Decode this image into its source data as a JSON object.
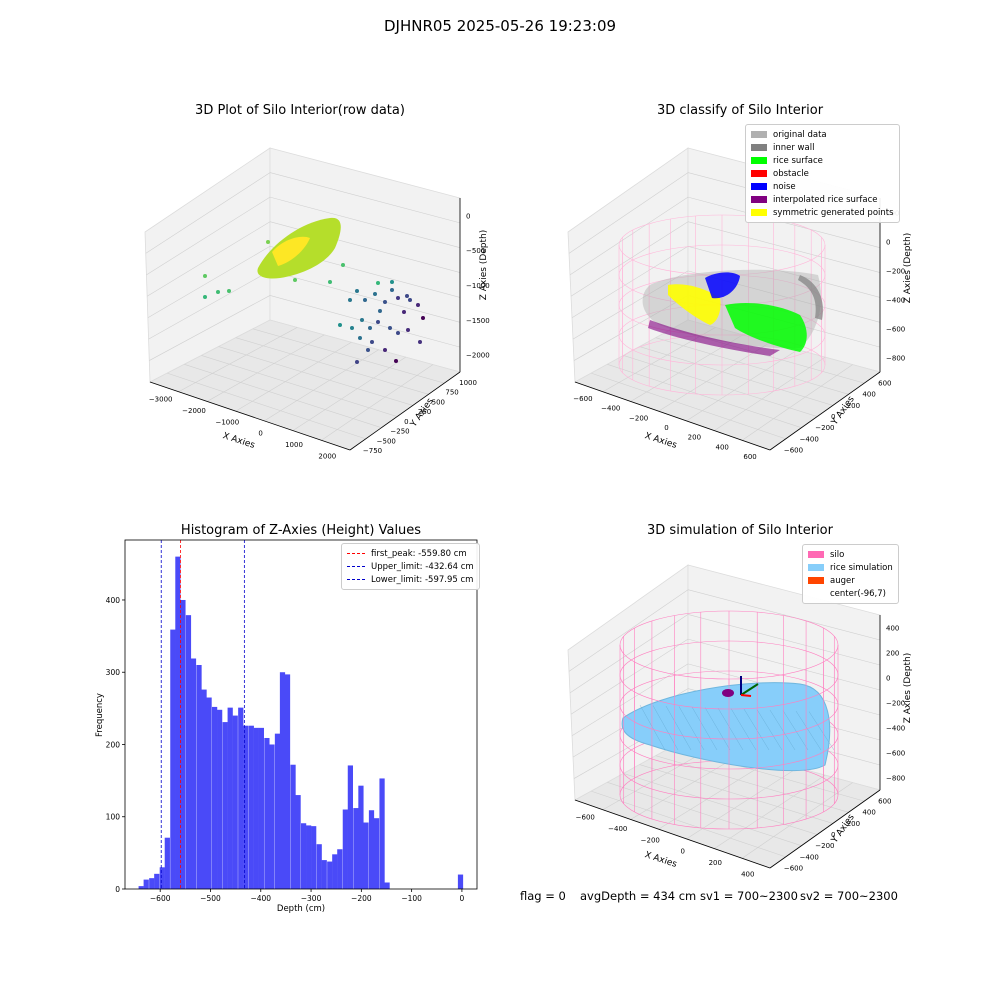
{
  "figure": {
    "title": "DJHNR05 2025-05-26 19:23:09"
  },
  "footer": {
    "flag": "flag = 0",
    "avg_depth": "avgDepth = 434 cm",
    "sv1": "sv1 = 700~2300",
    "sv2": "sv2 = 700~2300"
  },
  "colors": {
    "hist_bar": "#4a4af8",
    "first_peak_line": "#ff0000",
    "limit_line": "#0000cc",
    "silo": "#ff69b4",
    "rice_simulation": "#87cefa",
    "auger": "#ff4500",
    "original_data": "#b0b0b0",
    "inner_wall": "#808080",
    "rice_surface": "#00ff00",
    "obstacle": "#ff0000",
    "noise": "#0000ff",
    "interpolated_rice_surface": "#800080",
    "symmetric_generated_points": "#ffff00"
  },
  "chart_data": [
    {
      "type": "scatter",
      "kind": "3d",
      "title": "3D Plot of Silo Interior(row data)",
      "xlabel": "X Axies",
      "ylabel": "Y Axies",
      "zlabel": "Z Axies (Depth)",
      "x_ticks": [
        "−3000",
        "−2000",
        "−1000",
        "0",
        "1000",
        "2000"
      ],
      "y_ticks": [
        "−750",
        "−500",
        "−250",
        "0",
        "250",
        "500",
        "750",
        "1000"
      ],
      "z_ticks": [
        "0",
        "−500",
        "−1000",
        "−1500",
        "−2000"
      ],
      "colormap": "viridis",
      "grid": true
    },
    {
      "type": "scatter",
      "kind": "3d",
      "title": "3D classify of Silo Interior",
      "xlabel": "X Axies",
      "ylabel": "Y Axies",
      "zlabel": "Z Axies (Depth)",
      "x_ticks": [
        "−600",
        "−400",
        "−200",
        "0",
        "200",
        "400",
        "600"
      ],
      "y_ticks": [
        "−600",
        "−400",
        "−200",
        "0",
        "200",
        "400",
        "600"
      ],
      "z_ticks": [
        "200",
        "0",
        "−200",
        "−400",
        "−600",
        "−800"
      ],
      "legend": [
        "original data",
        "inner wall",
        "rice surface",
        "obstacle",
        "noise",
        "interpolated rice surface",
        "symmetric generated points"
      ],
      "legend_position": "upper right",
      "grid": true
    },
    {
      "type": "bar",
      "kind": "histogram",
      "title": "Histogram of Z-Axies (Height) Values",
      "xlabel": "Depth (cm)",
      "ylabel": "Frequency",
      "xlim": [
        -670,
        30
      ],
      "ylim": [
        0,
        483
      ],
      "x_ticks": [
        -600,
        -500,
        -400,
        -300,
        -200,
        -100,
        0
      ],
      "y_ticks": [
        0,
        100,
        200,
        300,
        400
      ],
      "bin_width": 10.4,
      "bins": [
        {
          "x0": -666,
          "value": 0
        },
        {
          "x0": -643,
          "value": 4
        },
        {
          "x0": -633,
          "value": 13
        },
        {
          "x0": -622,
          "value": 15
        },
        {
          "x0": -612,
          "value": 21
        },
        {
          "x0": -601,
          "value": 30
        },
        {
          "x0": -591,
          "value": 71
        },
        {
          "x0": -580,
          "value": 359
        },
        {
          "x0": -570,
          "value": 460
        },
        {
          "x0": -560,
          "value": 400
        },
        {
          "x0": -549,
          "value": 379
        },
        {
          "x0": -539,
          "value": 319
        },
        {
          "x0": -528,
          "value": 310
        },
        {
          "x0": -518,
          "value": 276
        },
        {
          "x0": -508,
          "value": 265
        },
        {
          "x0": -497,
          "value": 252
        },
        {
          "x0": -487,
          "value": 248
        },
        {
          "x0": -476,
          "value": 231
        },
        {
          "x0": -466,
          "value": 251
        },
        {
          "x0": -456,
          "value": 240
        },
        {
          "x0": -445,
          "value": 251
        },
        {
          "x0": -435,
          "value": 226
        },
        {
          "x0": -424,
          "value": 226
        },
        {
          "x0": -414,
          "value": 223
        },
        {
          "x0": -404,
          "value": 223
        },
        {
          "x0": -393,
          "value": 209
        },
        {
          "x0": -383,
          "value": 200
        },
        {
          "x0": -372,
          "value": 215
        },
        {
          "x0": -362,
          "value": 300
        },
        {
          "x0": -352,
          "value": 297
        },
        {
          "x0": -341,
          "value": 172
        },
        {
          "x0": -331,
          "value": 130
        },
        {
          "x0": -320,
          "value": 91
        },
        {
          "x0": -310,
          "value": 88
        },
        {
          "x0": -300,
          "value": 87
        },
        {
          "x0": -289,
          "value": 62
        },
        {
          "x0": -279,
          "value": 40
        },
        {
          "x0": -268,
          "value": 38
        },
        {
          "x0": -258,
          "value": 48
        },
        {
          "x0": -248,
          "value": 55
        },
        {
          "x0": -237,
          "value": 110
        },
        {
          "x0": -227,
          "value": 171
        },
        {
          "x0": -216,
          "value": 112
        },
        {
          "x0": -206,
          "value": 143
        },
        {
          "x0": -196,
          "value": 92
        },
        {
          "x0": -185,
          "value": 109
        },
        {
          "x0": -175,
          "value": 98
        },
        {
          "x0": -164,
          "value": 153
        },
        {
          "x0": -154,
          "value": 9
        },
        {
          "x0": -144,
          "value": 0
        },
        {
          "x0": -133,
          "value": 0
        },
        {
          "x0": -123,
          "value": 0
        },
        {
          "x0": -112,
          "value": 0
        },
        {
          "x0": -102,
          "value": 0
        },
        {
          "x0": -92,
          "value": 0
        },
        {
          "x0": -81,
          "value": 0
        },
        {
          "x0": -71,
          "value": 0
        },
        {
          "x0": -60,
          "value": 0
        },
        {
          "x0": -50,
          "value": 0
        },
        {
          "x0": -40,
          "value": 0
        },
        {
          "x0": -29,
          "value": 0
        },
        {
          "x0": -19,
          "value": 0
        },
        {
          "x0": -8,
          "value": 20
        }
      ],
      "vlines": [
        {
          "label": "first_peak: -559.80 cm",
          "x": -559.8,
          "color_key": "first_peak_line"
        },
        {
          "label": "Upper_limit: -432.64 cm",
          "x": -432.64,
          "color_key": "limit_line"
        },
        {
          "label": "Lower_limit: -597.95 cm",
          "x": -597.95,
          "color_key": "limit_line"
        }
      ],
      "legend_position": "upper right"
    },
    {
      "type": "scatter",
      "kind": "3d-surface",
      "title": "3D simulation of Silo Interior",
      "xlabel": "X Axies",
      "ylabel": "Y Axies",
      "zlabel": "Z Axies (Depth)",
      "x_ticks": [
        "−600",
        "−400",
        "−200",
        "0",
        "200",
        "400"
      ],
      "y_ticks": [
        "−600",
        "−400",
        "−200",
        "0",
        "200",
        "400",
        "600"
      ],
      "z_ticks": [
        "400",
        "200",
        "0",
        "−200",
        "−400",
        "−600",
        "−800"
      ],
      "legend": [
        "silo",
        "rice simulation",
        "auger",
        "center(-96,7)"
      ],
      "legend_position": "upper right",
      "grid": true
    }
  ]
}
